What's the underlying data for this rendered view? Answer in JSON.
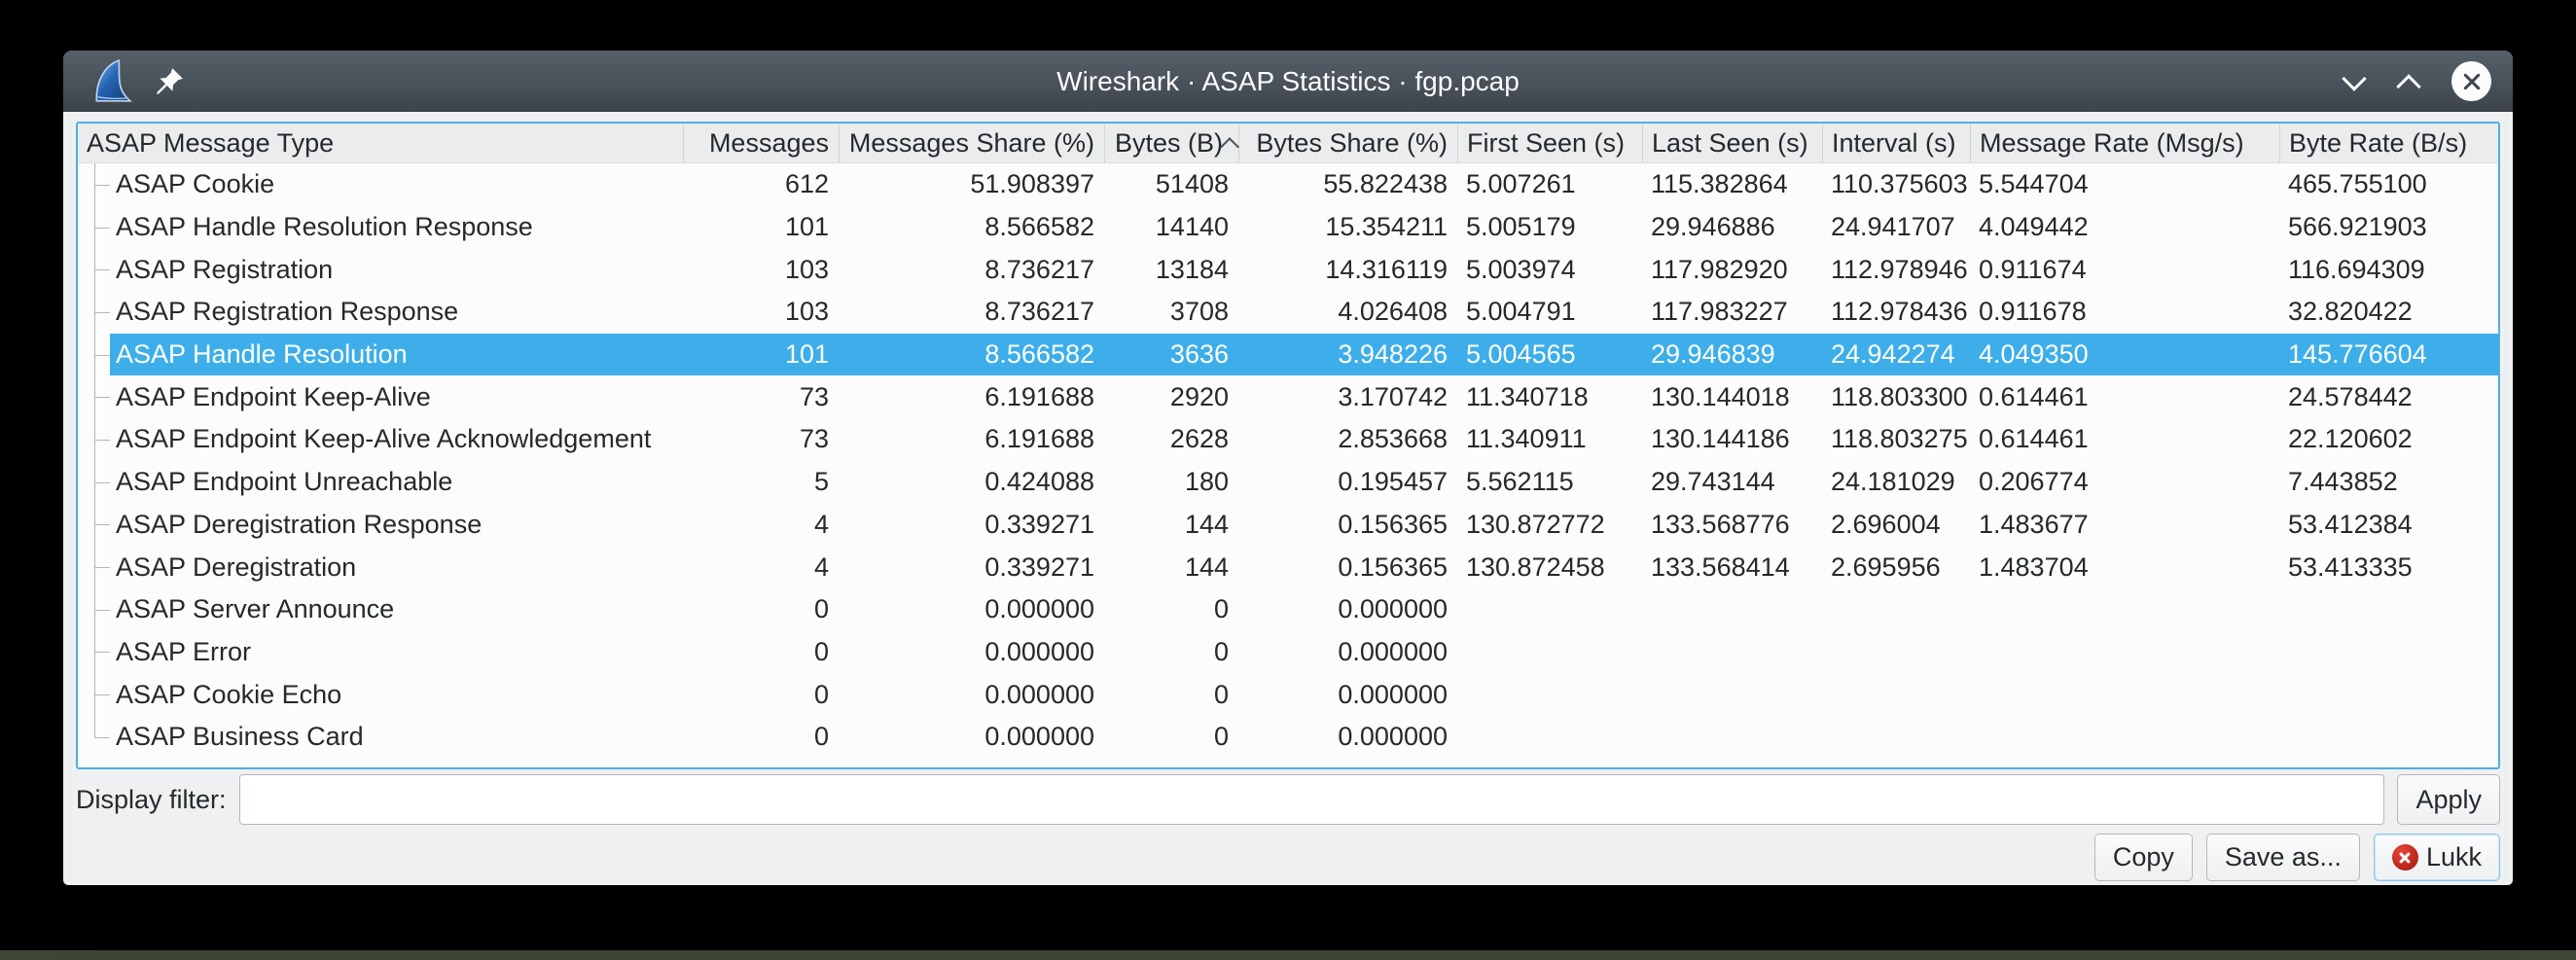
{
  "window": {
    "title": "Wireshark · ASAP Statistics · fgp.pcap",
    "icons": {
      "app": "wireshark-fin-logo",
      "pin": "pin-icon",
      "minimize": "chevron-down",
      "maximize": "chevron-up",
      "close": "x-in-circle"
    }
  },
  "table": {
    "columns": [
      "ASAP Message Type",
      "Messages",
      "Messages Share (%)",
      "Bytes (B)",
      "Bytes Share (%)",
      "First Seen (s)",
      "Last Seen (s)",
      "Interval (s)",
      "Message Rate (Msg/s)",
      "Byte Rate (B/s)"
    ],
    "sort": {
      "column": "Bytes (B)",
      "column_index": 3,
      "indicator": "up-caret"
    },
    "selected_index": 4,
    "selected_row": "ASAP Handle Resolution",
    "rows": [
      [
        "ASAP Cookie",
        "612",
        "51.908397",
        "51408",
        "55.822438",
        "5.007261",
        "115.382864",
        "110.375603",
        "5.544704",
        "465.755100"
      ],
      [
        "ASAP Handle Resolution Response",
        "101",
        "8.566582",
        "14140",
        "15.354211",
        "5.005179",
        "29.946886",
        "24.941707",
        "4.049442",
        "566.921903"
      ],
      [
        "ASAP Registration",
        "103",
        "8.736217",
        "13184",
        "14.316119",
        "5.003974",
        "117.982920",
        "112.978946",
        "0.911674",
        "116.694309"
      ],
      [
        "ASAP Registration Response",
        "103",
        "8.736217",
        "3708",
        "4.026408",
        "5.004791",
        "117.983227",
        "112.978436",
        "0.911678",
        "32.820422"
      ],
      [
        "ASAP Handle Resolution",
        "101",
        "8.566582",
        "3636",
        "3.948226",
        "5.004565",
        "29.946839",
        "24.942274",
        "4.049350",
        "145.776604"
      ],
      [
        "ASAP Endpoint Keep-Alive",
        "73",
        "6.191688",
        "2920",
        "3.170742",
        "11.340718",
        "130.144018",
        "118.803300",
        "0.614461",
        "24.578442"
      ],
      [
        "ASAP Endpoint Keep-Alive Acknowledgement",
        "73",
        "6.191688",
        "2628",
        "2.853668",
        "11.340911",
        "130.144186",
        "118.803275",
        "0.614461",
        "22.120602"
      ],
      [
        "ASAP Endpoint Unreachable",
        "5",
        "0.424088",
        "180",
        "0.195457",
        "5.562115",
        "29.743144",
        "24.181029",
        "0.206774",
        "7.443852"
      ],
      [
        "ASAP Deregistration Response",
        "4",
        "0.339271",
        "144",
        "0.156365",
        "130.872772",
        "133.568776",
        "2.696004",
        "1.483677",
        "53.412384"
      ],
      [
        "ASAP Deregistration",
        "4",
        "0.339271",
        "144",
        "0.156365",
        "130.872458",
        "133.568414",
        "2.695956",
        "1.483704",
        "53.413335"
      ],
      [
        "ASAP Server Announce",
        "0",
        "0.000000",
        "0",
        "0.000000",
        "",
        "",
        "",
        "",
        ""
      ],
      [
        "ASAP Error",
        "0",
        "0.000000",
        "0",
        "0.000000",
        "",
        "",
        "",
        "",
        ""
      ],
      [
        "ASAP Cookie Echo",
        "0",
        "0.000000",
        "0",
        "0.000000",
        "",
        "",
        "",
        "",
        ""
      ],
      [
        "ASAP Business Card",
        "0",
        "0.000000",
        "0",
        "0.000000",
        "",
        "",
        "",
        "",
        ""
      ]
    ]
  },
  "filter": {
    "label": "Display filter:",
    "value": "",
    "apply_label": "Apply"
  },
  "actions": {
    "copy": "Copy",
    "save_as": "Save as...",
    "close": "Lukk"
  },
  "colors": {
    "selection": "#3daee9",
    "table_focus_border": "#55ade4",
    "titlebar_top": "#565f68",
    "titlebar_bottom": "#3c434a",
    "close_icon_red": "#b02118",
    "window_background": "#eff0f1"
  }
}
